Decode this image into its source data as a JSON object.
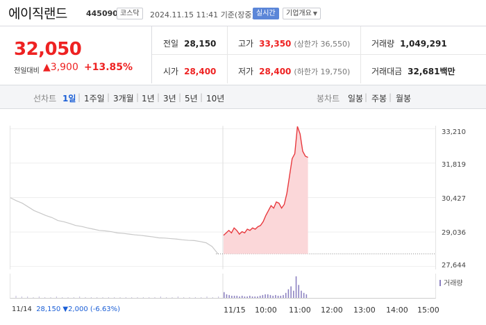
{
  "header": {
    "name": "에이직랜드",
    "code": "445090",
    "market": "코스닥",
    "datetime": "2024.11.15 11:41",
    "basis": "기준(장중)",
    "realtime_label": "실시간",
    "company_overview_label": "기업개요"
  },
  "quote": {
    "price": "32,050",
    "change_label": "전일대비",
    "change_amount": "3,900",
    "change_percent": "+13.85%"
  },
  "stats": {
    "prev_close_label": "전일",
    "prev_close": "28,150",
    "high_label": "고가",
    "high": "33,350",
    "upper_limit": "(상한가 36,550)",
    "volume_label": "거래량",
    "volume": "1,049,291",
    "open_label": "시가",
    "open": "28,400",
    "low_label": "저가",
    "low": "28,400",
    "lower_limit": "(하한가 19,750)",
    "value_label": "거래대금",
    "value": "32,681백만"
  },
  "tabs": {
    "line_label": "선차트",
    "line_items": [
      "1일",
      "1주일",
      "3개월",
      "1년",
      "3년",
      "5년",
      "10년"
    ],
    "candle_label": "봉차트",
    "candle_items": [
      "일봉",
      "주봉",
      "월봉"
    ]
  },
  "chart_data": {
    "type": "line",
    "ylim": [
      27644,
      33210
    ],
    "y_ticks": [
      "33,210",
      "31,819",
      "30,427",
      "29,036",
      "27,644"
    ],
    "x_ticks": [
      "11/14",
      "11/15",
      "10:00",
      "11:00",
      "12:00",
      "13:00",
      "14:00",
      "15:00"
    ],
    "prev_day_series": [
      30420,
      30300,
      30200,
      30050,
      29900,
      29800,
      29700,
      29620,
      29500,
      29450,
      29380,
      29300,
      29260,
      29200,
      29150,
      29100,
      29080,
      29050,
      29000,
      28980,
      28950,
      28920,
      28900,
      28870,
      28840,
      28800,
      28790,
      28770,
      28750,
      28720,
      28700,
      28690,
      28650,
      28600,
      28450,
      28150
    ],
    "today_series": [
      28900,
      29000,
      29100,
      29000,
      29200,
      29100,
      28950,
      29050,
      29000,
      29150,
      29100,
      29200,
      29150,
      29250,
      29300,
      29450,
      29700,
      29900,
      30100,
      30000,
      30250,
      30200,
      30000,
      30150,
      30600,
      31300,
      32000,
      32200,
      33300,
      33000,
      32300,
      32100,
      32050
    ],
    "volume_prev": [
      3,
      2,
      2,
      1,
      2,
      1,
      1,
      2,
      1,
      1,
      1,
      2,
      1,
      1,
      1,
      1,
      1,
      1,
      1,
      1,
      1,
      1,
      1,
      1,
      1,
      2,
      1,
      1,
      2,
      1,
      1,
      1,
      1,
      2,
      1,
      2
    ],
    "volume_today": [
      8,
      5,
      4,
      3,
      3,
      3,
      2,
      3,
      2,
      2,
      3,
      2,
      2,
      2,
      3,
      4,
      5,
      5,
      4,
      3,
      4,
      3,
      3,
      4,
      7,
      12,
      16,
      10,
      30,
      18,
      10,
      7,
      5
    ],
    "volume_label": "거래량",
    "prev_close_line": 28150,
    "colors": {
      "today_line": "#e8383d",
      "today_fill": "#fbd7d9",
      "prev_line": "#c8c8c8",
      "volume": "#8a7fc0"
    }
  },
  "footer": {
    "prev_date": "11/14",
    "prev_close": "28,150",
    "prev_change": "▼2,000",
    "prev_change_pct": "(-6.63%)"
  }
}
